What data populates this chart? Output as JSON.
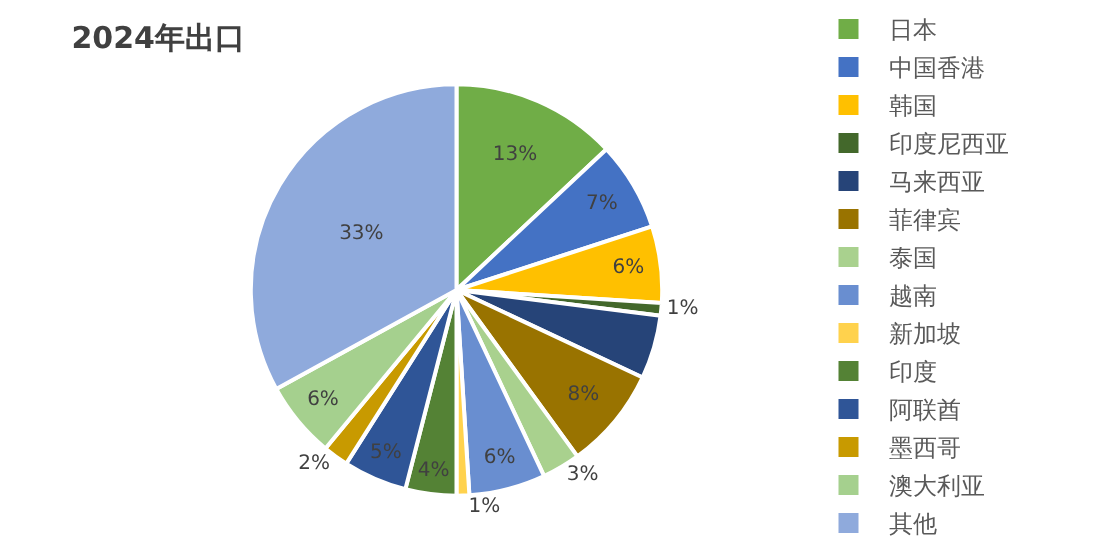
{
  "chart_data": {
    "type": "pie",
    "title": "2024年出口",
    "categories": [
      "日本",
      "中国香港",
      "韩国",
      "印度尼西亚",
      "马来西亚",
      "菲律宾",
      "泰国",
      "越南",
      "新加坡",
      "印度",
      "阿联酋",
      "墨西哥",
      "澳大利亚",
      "其他"
    ],
    "values": [
      13,
      7,
      6,
      1,
      5,
      8,
      3,
      6,
      1,
      4,
      5,
      2,
      6,
      33
    ],
    "value_labels": [
      "13%",
      "7%",
      "6%",
      "1%",
      null,
      "8%",
      "3%",
      "6%",
      "1%",
      "4%",
      "5%",
      "2%",
      "6%",
      "33%"
    ],
    "colors": [
      "#70ad47",
      "#4472c4",
      "#ffc000",
      "#43682b",
      "#264478",
      "#997300",
      "#a9d18e",
      "#698ed0",
      "#ffd24d",
      "#548235",
      "#2f5597",
      "#c89a00",
      "#a5d08e",
      "#8faadc"
    ],
    "legend": "right"
  }
}
